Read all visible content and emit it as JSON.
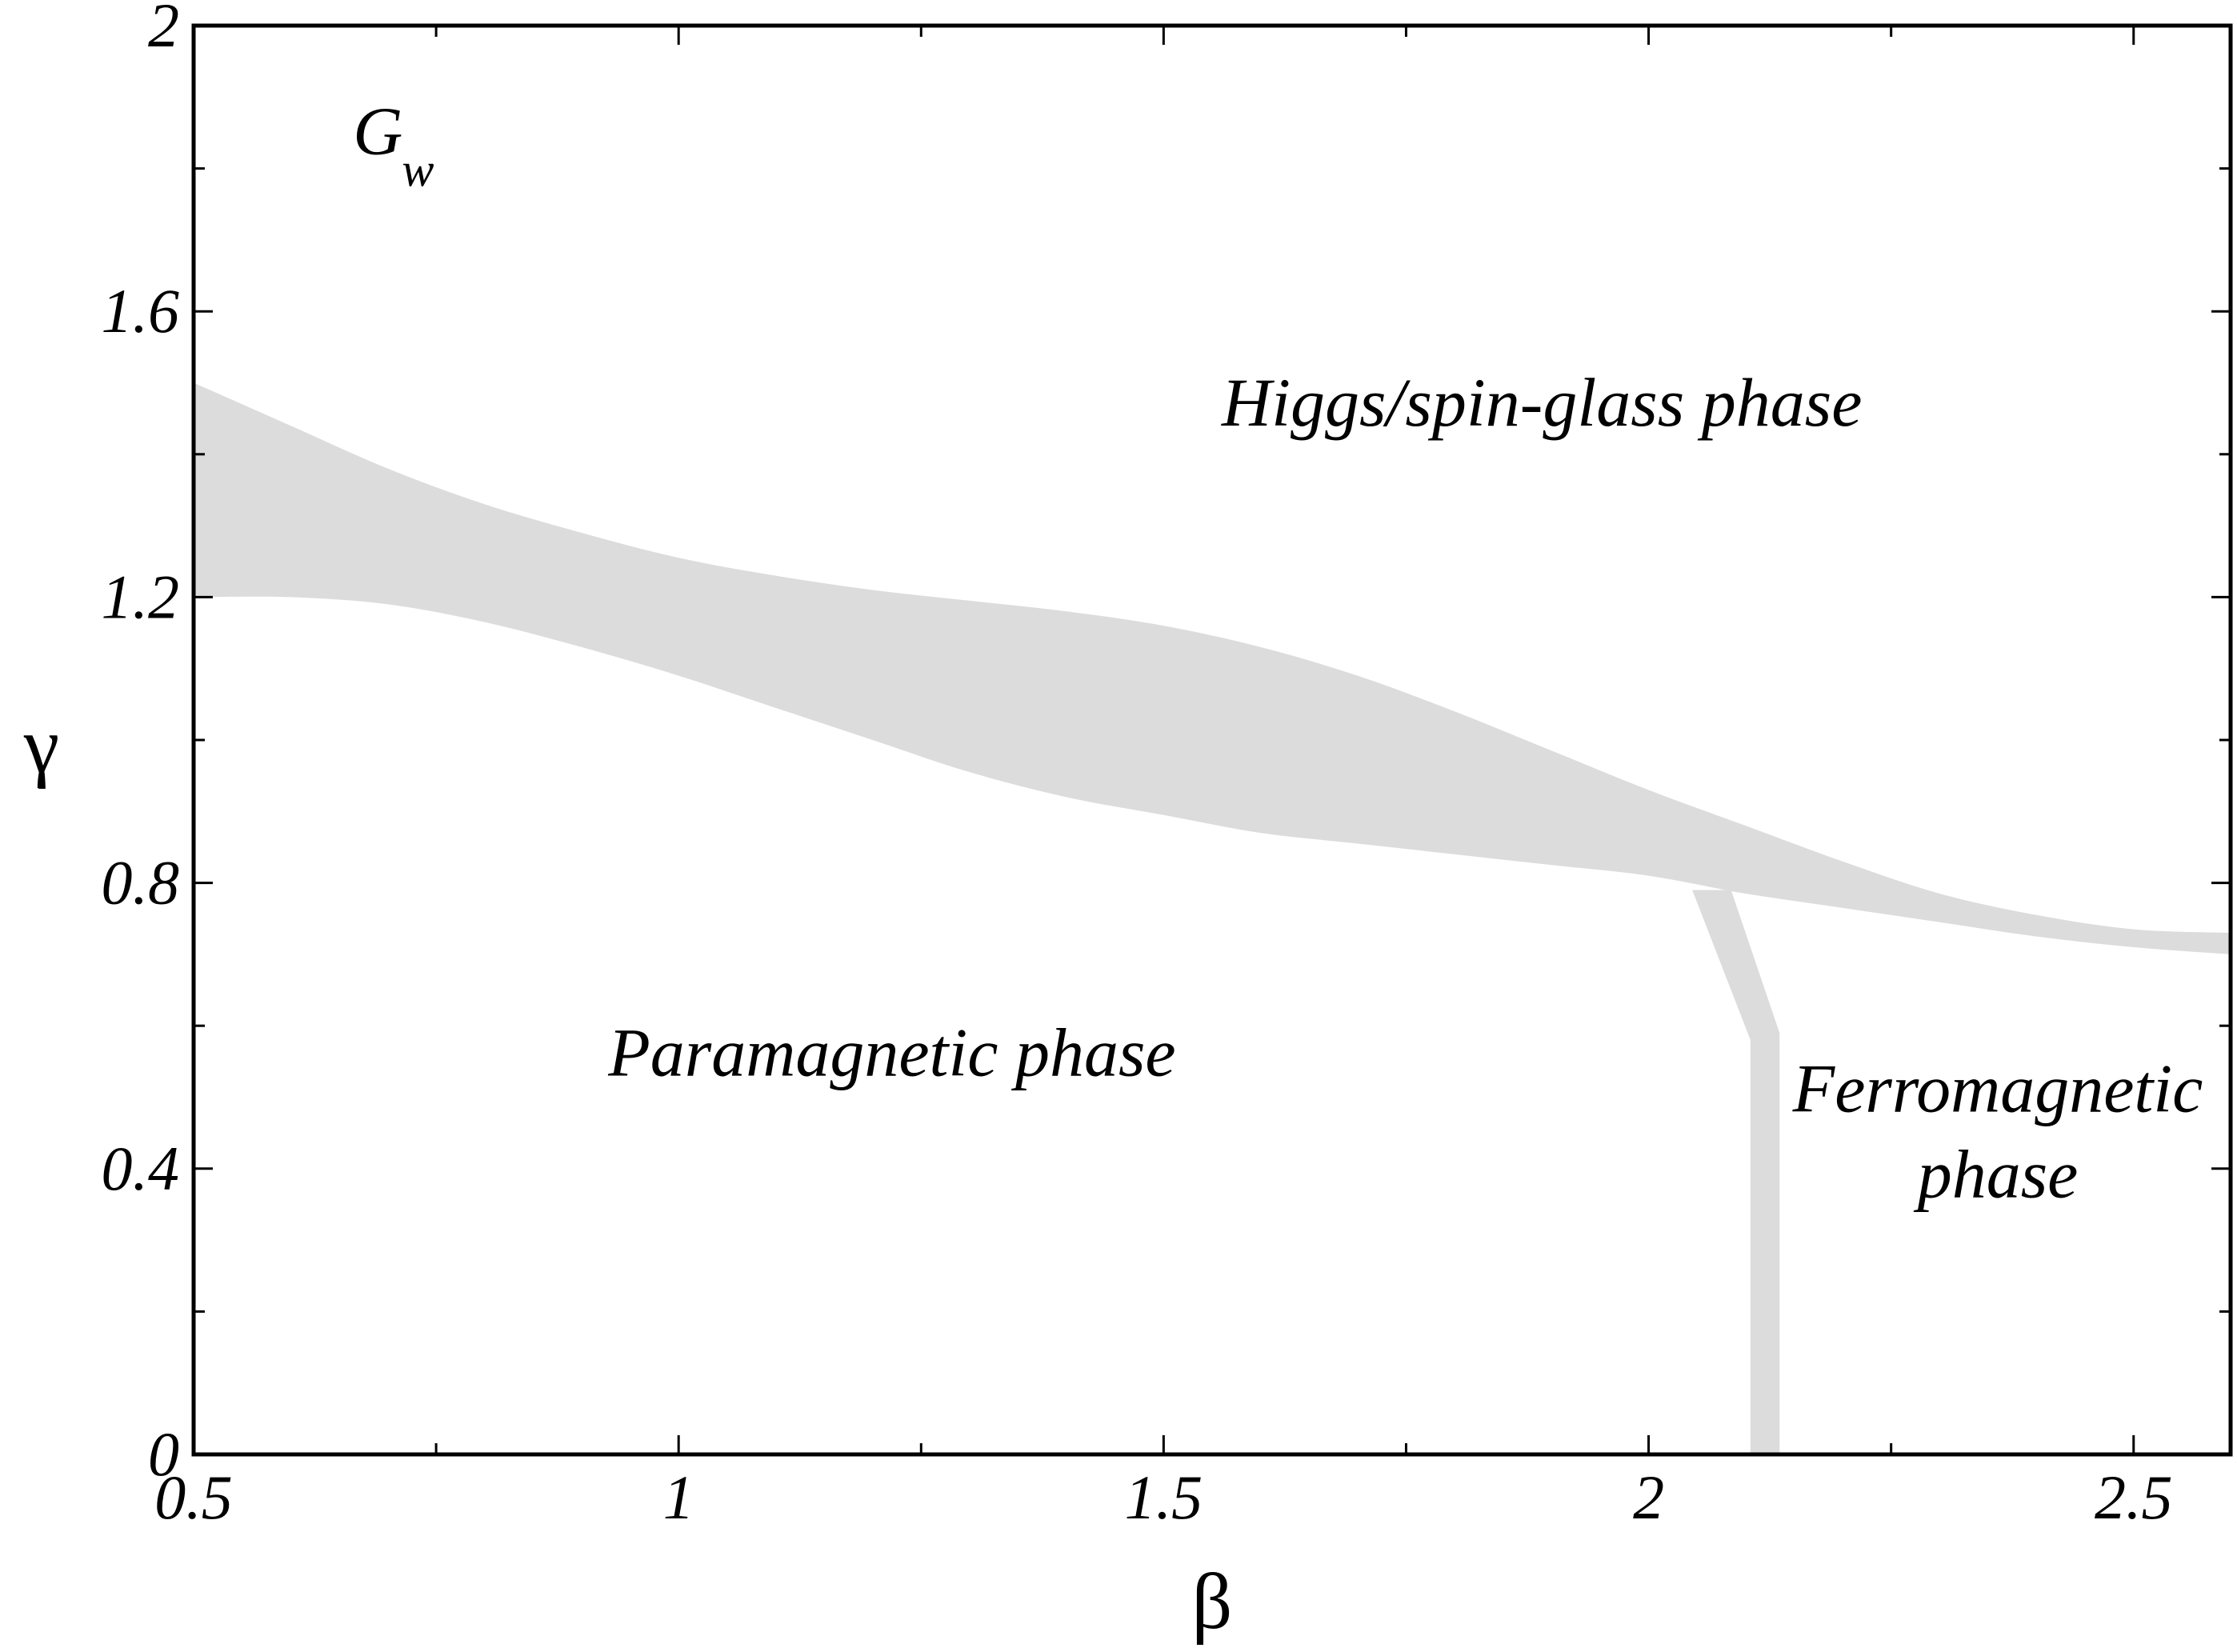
{
  "chart_data": {
    "type": "area",
    "title": "",
    "xlabel": "β",
    "ylabel": "γ",
    "xlim": [
      0.5,
      2.6
    ],
    "ylim": [
      0,
      2
    ],
    "x_ticks": [
      0.5,
      1,
      1.5,
      2,
      2.5
    ],
    "x_tick_labels": [
      "0.5",
      "1",
      "1.5",
      "2",
      "2.5"
    ],
    "y_ticks": [
      0,
      0.4,
      0.8,
      1.2,
      1.6,
      2
    ],
    "y_tick_labels": [
      "0",
      "0.4",
      "0.8",
      "1.2",
      "1.6",
      "2"
    ],
    "x_minor_step": 0.25,
    "y_minor_step": 0.2,
    "grid": false,
    "band_color": "#dcdcdc",
    "series": [
      {
        "upper": [
          [
            0.5,
            1.5
          ],
          [
            0.6,
            1.44
          ],
          [
            0.7,
            1.38
          ],
          [
            0.8,
            1.33
          ],
          [
            0.9,
            1.29
          ],
          [
            1.0,
            1.255
          ],
          [
            1.1,
            1.23
          ],
          [
            1.2,
            1.21
          ],
          [
            1.3,
            1.195
          ],
          [
            1.4,
            1.18
          ],
          [
            1.5,
            1.16
          ],
          [
            1.6,
            1.13
          ],
          [
            1.7,
            1.09
          ],
          [
            1.8,
            1.04
          ],
          [
            1.9,
            0.985
          ],
          [
            2.0,
            0.93
          ],
          [
            2.1,
            0.88
          ],
          [
            2.2,
            0.83
          ],
          [
            2.3,
            0.785
          ],
          [
            2.4,
            0.755
          ],
          [
            2.5,
            0.735
          ],
          [
            2.6,
            0.73
          ]
        ],
        "lower": [
          [
            0.5,
            1.2
          ],
          [
            0.6,
            1.2
          ],
          [
            0.7,
            1.19
          ],
          [
            0.8,
            1.165
          ],
          [
            0.9,
            1.13
          ],
          [
            1.0,
            1.09
          ],
          [
            1.1,
            1.045
          ],
          [
            1.2,
            1.0
          ],
          [
            1.3,
            0.955
          ],
          [
            1.4,
            0.92
          ],
          [
            1.5,
            0.895
          ],
          [
            1.6,
            0.87
          ],
          [
            1.7,
            0.855
          ],
          [
            1.8,
            0.84
          ],
          [
            1.9,
            0.825
          ],
          [
            2.0,
            0.81
          ],
          [
            2.1,
            0.785
          ],
          [
            2.2,
            0.765
          ],
          [
            2.3,
            0.745
          ],
          [
            2.4,
            0.725
          ],
          [
            2.5,
            0.71
          ],
          [
            2.6,
            0.7
          ]
        ]
      },
      {
        "upper": [
          [
            2.045,
            0.79
          ],
          [
            2.105,
            0.58
          ],
          [
            2.105,
            0.0
          ]
        ],
        "lower": [
          [
            2.085,
            0.79
          ],
          [
            2.135,
            0.59
          ],
          [
            2.135,
            0.0
          ]
        ]
      }
    ],
    "annotations": [
      {
        "text": "G",
        "sub": "w",
        "x": 0.69,
        "y": 1.82
      },
      {
        "text": "Higgs/spin-glass phase",
        "x": 1.89,
        "y": 1.44
      },
      {
        "text": "Paramagnetic phase",
        "x": 1.22,
        "y": 0.53
      },
      {
        "text": "Ferromagnetic",
        "x": 2.36,
        "y": 0.48
      },
      {
        "text": "phase",
        "x": 2.36,
        "y": 0.36
      }
    ]
  }
}
